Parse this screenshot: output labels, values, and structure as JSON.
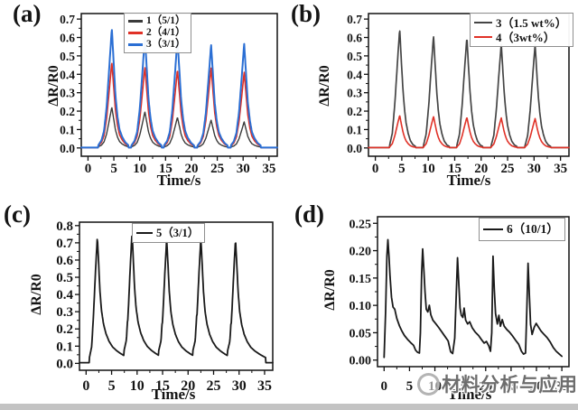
{
  "page": {
    "background": "#ffffff",
    "bottom_bar_color": "#c3c3c3"
  },
  "watermark": {
    "logo": "circle-logo",
    "text": "材料分析与应用",
    "color": "#6d6d6d"
  },
  "chart_data": [
    {
      "id": "a",
      "panel_label": "(a)",
      "type": "line",
      "xlabel": "Time/s",
      "ylabel": "ΔR/R0",
      "xlim": [
        -1.3,
        36.6
      ],
      "ylim": [
        -0.045,
        0.73
      ],
      "xticks": [
        0,
        5,
        10,
        15,
        20,
        25,
        30,
        35
      ],
      "xtick_labels": [
        "0",
        "5",
        "10",
        "15",
        "20",
        "25",
        "30",
        "35"
      ],
      "yticks": [
        0,
        0.1,
        0.2,
        0.3,
        0.4,
        0.5,
        0.6,
        0.7
      ],
      "ytick_labels": [
        "0.0",
        "0.1",
        "0.2",
        "0.3",
        "0.4",
        "0.5",
        "0.6",
        "0.7"
      ],
      "grid": false,
      "legend_position": "top-right",
      "baseline": 0.002,
      "peak_times": [
        4.6,
        11.0,
        17.3,
        23.8,
        30.2
      ],
      "shape": [
        [
          -2.6,
          0.02
        ],
        [
          -2.0,
          0.06
        ],
        [
          -1.5,
          0.14
        ],
        [
          -1.0,
          0.34
        ],
        [
          -0.5,
          0.66
        ],
        [
          0,
          1
        ],
        [
          0.35,
          0.72
        ],
        [
          0.7,
          0.44
        ],
        [
          1.1,
          0.26
        ],
        [
          1.5,
          0.15
        ],
        [
          2.0,
          0.09
        ],
        [
          2.6,
          0.045
        ],
        [
          3.2,
          0.02
        ]
      ],
      "series": [
        {
          "name": "1（5/1）",
          "color": "#3a3a3a",
          "width": 1.4,
          "peak_heights": [
            0.22,
            0.195,
            0.165,
            0.15,
            0.14
          ]
        },
        {
          "name": "2（4/1）",
          "color": "#e03127",
          "width": 1.6,
          "peak_heights": [
            0.465,
            0.44,
            0.425,
            0.435,
            0.41
          ]
        },
        {
          "name": "3（3/1）",
          "color": "#2b6fd4",
          "width": 2.0,
          "peak_heights": [
            0.65,
            0.605,
            0.595,
            0.56,
            0.565
          ]
        }
      ]
    },
    {
      "id": "b",
      "panel_label": "(b)",
      "type": "line",
      "xlabel": "Time/s",
      "ylabel": "ΔR/R0",
      "xlim": [
        -1.3,
        36.6
      ],
      "ylim": [
        -0.045,
        0.73
      ],
      "xticks": [
        0,
        5,
        10,
        15,
        20,
        25,
        30,
        35
      ],
      "xtick_labels": [
        "0",
        "5",
        "10",
        "15",
        "20",
        "25",
        "30",
        "35"
      ],
      "yticks": [
        0,
        0.1,
        0.2,
        0.3,
        0.4,
        0.5,
        0.6,
        0.7
      ],
      "ytick_labels": [
        "0.0",
        "0.1",
        "0.2",
        "0.3",
        "0.4",
        "0.5",
        "0.6",
        "0.7"
      ],
      "grid": false,
      "legend_position": "top-right",
      "baseline": 0.002,
      "peak_times": [
        4.6,
        11.0,
        17.3,
        23.8,
        30.2
      ],
      "shape": [
        [
          -1.9,
          0.02
        ],
        [
          -1.4,
          0.12
        ],
        [
          -0.9,
          0.38
        ],
        [
          -0.45,
          0.7
        ],
        [
          0,
          1
        ],
        [
          0.3,
          0.74
        ],
        [
          0.6,
          0.5
        ],
        [
          0.9,
          0.33
        ],
        [
          1.2,
          0.21
        ],
        [
          1.6,
          0.12
        ],
        [
          2.0,
          0.06
        ],
        [
          2.5,
          0.025
        ],
        [
          3.0,
          0.01
        ]
      ],
      "series": [
        {
          "name": "3（1.5 wt%）",
          "color": "#454545",
          "width": 1.7,
          "peak_heights": [
            0.645,
            0.61,
            0.6,
            0.565,
            0.56
          ]
        },
        {
          "name": "4（3wt%）",
          "color": "#e03127",
          "width": 1.6,
          "peak_heights": [
            0.175,
            0.17,
            0.165,
            0.162,
            0.158
          ]
        }
      ]
    },
    {
      "id": "c",
      "panel_label": "(c)",
      "type": "line",
      "xlabel": "Time/s",
      "ylabel": "ΔR/R0",
      "xlim": [
        -1.3,
        36.6
      ],
      "ylim": [
        -0.04,
        0.82
      ],
      "xticks": [
        0,
        5,
        10,
        15,
        20,
        25,
        30,
        35
      ],
      "xtick_labels": [
        "0",
        "5",
        "10",
        "15",
        "20",
        "25",
        "30",
        "35"
      ],
      "yticks": [
        0,
        0.1,
        0.2,
        0.3,
        0.4,
        0.5,
        0.6,
        0.7,
        0.8
      ],
      "ytick_labels": [
        "0.0",
        "0.1",
        "0.2",
        "0.3",
        "0.4",
        "0.5",
        "0.6",
        "0.7",
        "0.8"
      ],
      "grid": false,
      "legend_position": "top-right",
      "baseline": 0.004,
      "peak_times": [
        2.2,
        9.0,
        15.8,
        22.5,
        29.3
      ],
      "shape": [
        [
          -1.6,
          0.03
        ],
        [
          -1.1,
          0.13
        ],
        [
          -0.7,
          0.42
        ],
        [
          -0.35,
          0.73
        ],
        [
          0,
          1
        ],
        [
          0.25,
          0.8
        ],
        [
          0.5,
          0.58
        ],
        [
          0.8,
          0.42
        ],
        [
          1.2,
          0.31
        ],
        [
          1.7,
          0.23
        ],
        [
          2.3,
          0.17
        ],
        [
          3.0,
          0.125
        ],
        [
          3.8,
          0.095
        ],
        [
          4.6,
          0.072
        ],
        [
          5.3,
          0.055
        ],
        [
          5.9,
          0.042
        ]
      ],
      "series": [
        {
          "name": "5（3/1）",
          "color": "#1a1a1a",
          "width": 1.8,
          "peak_heights": [
            0.73,
            0.755,
            0.72,
            0.725,
            0.715
          ]
        }
      ]
    },
    {
      "id": "d",
      "panel_label": "(d)",
      "type": "line",
      "xlabel": "Time/s",
      "ylabel": "ΔR/R0",
      "xlim": [
        -1.3,
        36.4
      ],
      "ylim": [
        -0.012,
        0.262
      ],
      "xticks": [
        0,
        5,
        10,
        15,
        20,
        25,
        30,
        35
      ],
      "xtick_labels": [
        "0",
        "5",
        "10",
        "15",
        "20",
        "25",
        "30",
        "35"
      ],
      "yticks": [
        0,
        0.05,
        0.1,
        0.15,
        0.2,
        0.25
      ],
      "ytick_labels": [
        "0.00",
        "0.05",
        "0.10",
        "0.15",
        "0.20",
        "0.25"
      ],
      "grid": false,
      "legend_position": "top-right",
      "baseline": 0,
      "series": [
        {
          "name": "6（10/1）",
          "color": "#1a1a1a",
          "width": 1.8,
          "points": [
            [
              0,
              0.005
            ],
            [
              0.3,
              0.09
            ],
            [
              0.55,
              0.19
            ],
            [
              0.75,
              0.22
            ],
            [
              0.95,
              0.19
            ],
            [
              1.15,
              0.155
            ],
            [
              1.45,
              0.115
            ],
            [
              1.75,
              0.097
            ],
            [
              2.1,
              0.093
            ],
            [
              2.5,
              0.076
            ],
            [
              3,
              0.063
            ],
            [
              3.5,
              0.053
            ],
            [
              4,
              0.045
            ],
            [
              4.6,
              0.038
            ],
            [
              5.2,
              0.032
            ],
            [
              5.8,
              0.027
            ],
            [
              6.2,
              0.018
            ],
            [
              6.6,
              0.014
            ],
            [
              6.95,
              0.013
            ],
            [
              7.15,
              0.05
            ],
            [
              7.4,
              0.16
            ],
            [
              7.6,
              0.203
            ],
            [
              7.85,
              0.16
            ],
            [
              8.05,
              0.125
            ],
            [
              8.3,
              0.093
            ],
            [
              8.6,
              0.088
            ],
            [
              8.9,
              0.1
            ],
            [
              9.2,
              0.083
            ],
            [
              9.6,
              0.073
            ],
            [
              10.2,
              0.066
            ],
            [
              10.8,
              0.059
            ],
            [
              11.4,
              0.051
            ],
            [
              12,
              0.043
            ],
            [
              12.6,
              0.035
            ],
            [
              13.1,
              0.015
            ],
            [
              13.5,
              0.012
            ],
            [
              13.9,
              0.04
            ],
            [
              14.2,
              0.12
            ],
            [
              14.45,
              0.187
            ],
            [
              14.7,
              0.14
            ],
            [
              14.95,
              0.095
            ],
            [
              15.2,
              0.082
            ],
            [
              15.5,
              0.078
            ],
            [
              15.75,
              0.095
            ],
            [
              16.05,
              0.073
            ],
            [
              16.45,
              0.066
            ],
            [
              16.85,
              0.07
            ],
            [
              17.35,
              0.059
            ],
            [
              17.95,
              0.051
            ],
            [
              18.6,
              0.045
            ],
            [
              19.2,
              0.037
            ],
            [
              19.7,
              0.031
            ],
            [
              20.15,
              0.034
            ],
            [
              20.6,
              0.026
            ],
            [
              20.95,
              0.016
            ],
            [
              21.2,
              0.05
            ],
            [
              21.45,
              0.19
            ],
            [
              21.7,
              0.13
            ],
            [
              21.95,
              0.085
            ],
            [
              22.3,
              0.066
            ],
            [
              22.6,
              0.082
            ],
            [
              22.9,
              0.062
            ],
            [
              23.25,
              0.074
            ],
            [
              23.65,
              0.062
            ],
            [
              24.15,
              0.056
            ],
            [
              24.7,
              0.051
            ],
            [
              25.3,
              0.044
            ],
            [
              25.9,
              0.036
            ],
            [
              26.5,
              0.029
            ],
            [
              27.05,
              0.016
            ],
            [
              27.45,
              0.011
            ],
            [
              27.85,
              0.013
            ],
            [
              28.1,
              0.09
            ],
            [
              28.35,
              0.177
            ],
            [
              28.6,
              0.12
            ],
            [
              28.85,
              0.065
            ],
            [
              29.15,
              0.047
            ],
            [
              29.55,
              0.06
            ],
            [
              29.95,
              0.067
            ],
            [
              30.35,
              0.061
            ],
            [
              30.9,
              0.053
            ],
            [
              31.5,
              0.047
            ],
            [
              32.1,
              0.041
            ],
            [
              32.7,
              0.033
            ],
            [
              33.3,
              0.023
            ],
            [
              33.9,
              0.016
            ],
            [
              34.5,
              0.011
            ],
            [
              35,
              0.007
            ]
          ]
        }
      ]
    }
  ]
}
